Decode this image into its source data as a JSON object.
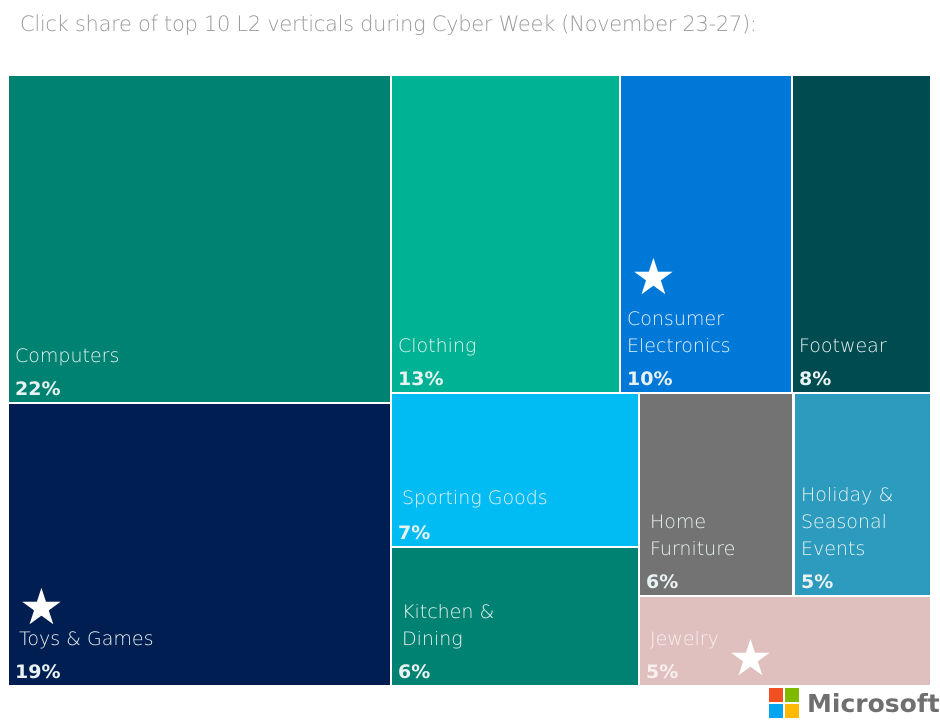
{
  "chart_data": {
    "type": "treemap",
    "title": "Click share of top 10 L2 verticals during Cyber Week (November 23-27):",
    "tiles": [
      {
        "label": "Computers",
        "value": 22,
        "value_label": "22%",
        "color": "#008272",
        "starred": false
      },
      {
        "label": "Toys & Games",
        "value": 19,
        "value_label": "19%",
        "color": "#001e51",
        "starred": true
      },
      {
        "label": "Clothing",
        "value": 13,
        "value_label": "13%",
        "color": "#00b294",
        "starred": false
      },
      {
        "label": "Consumer\nElectronics",
        "value": 10,
        "value_label": "10%",
        "color": "#0078d7",
        "starred": true
      },
      {
        "label": "Footwear",
        "value": 8,
        "value_label": "8%",
        "color": "#004b50",
        "starred": false
      },
      {
        "label": "Sporting Goods",
        "value": 7,
        "value_label": "7%",
        "color": "#00bcf2",
        "starred": false
      },
      {
        "label": "Kitchen &\nDining",
        "value": 6,
        "value_label": "6%",
        "color": "#008272",
        "starred": false
      },
      {
        "label": "Home\nFurniture",
        "value": 6,
        "value_label": "6%",
        "color": "#737373",
        "starred": false
      },
      {
        "label": "Holiday &\nSeasonal\nEvents",
        "value": 5,
        "value_label": "5%",
        "color": "#2d9bbd",
        "starred": false
      },
      {
        "label": "Jewelry",
        "value": 5,
        "value_label": "5%",
        "color": "#e0c0be",
        "starred": true
      }
    ]
  },
  "logo": {
    "text": "Microsoft",
    "colors": [
      "#f25022",
      "#7fba00",
      "#00a4ef",
      "#ffb900"
    ]
  }
}
